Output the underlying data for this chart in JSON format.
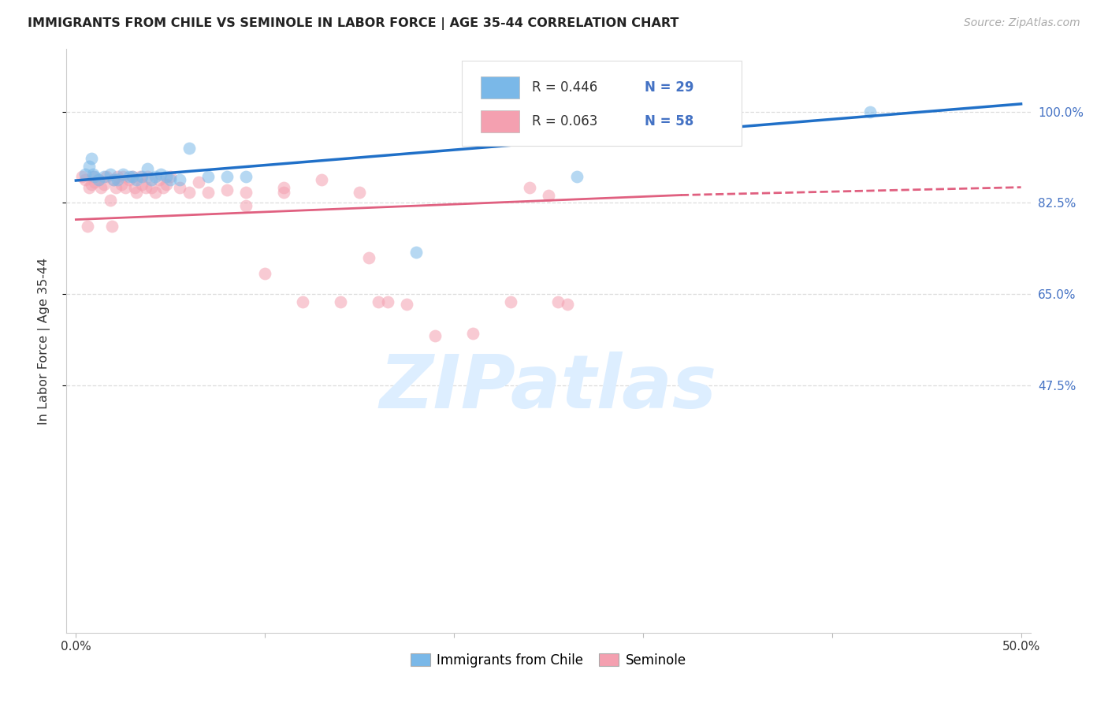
{
  "title": "IMMIGRANTS FROM CHILE VS SEMINOLE IN LABOR FORCE | AGE 35-44 CORRELATION CHART",
  "source": "Source: ZipAtlas.com",
  "ylabel": "In Labor Force | Age 35-44",
  "xtick_positions": [
    0.0,
    0.1,
    0.2,
    0.3,
    0.4,
    0.5
  ],
  "xtick_labels": [
    "0.0%",
    "",
    "",
    "",
    "",
    "50.0%"
  ],
  "ytick_labels_right": [
    "47.5%",
    "65.0%",
    "82.5%",
    "100.0%"
  ],
  "ytick_positions": [
    0.475,
    0.65,
    0.825,
    1.0
  ],
  "xlim": [
    -0.005,
    0.505
  ],
  "ylim": [
    0.0,
    1.12
  ],
  "blue_color": "#7ab8e8",
  "pink_color": "#f4a0b0",
  "blue_line_color": "#2070c8",
  "pink_line_color": "#e06080",
  "legend_entries": [
    {
      "label": "Immigrants from Chile",
      "R": 0.446,
      "N": 29,
      "color": "#7ab8e8"
    },
    {
      "label": "Seminole",
      "R": 0.063,
      "N": 58,
      "color": "#f4a0b0"
    }
  ],
  "blue_scatter_x": [
    0.005,
    0.007,
    0.008,
    0.009,
    0.01,
    0.012,
    0.015,
    0.018,
    0.02,
    0.022,
    0.025,
    0.028,
    0.03,
    0.032,
    0.035,
    0.038,
    0.04,
    0.042,
    0.045,
    0.048,
    0.05,
    0.055,
    0.06,
    0.07,
    0.08,
    0.09,
    0.18,
    0.265,
    0.42
  ],
  "blue_scatter_y": [
    0.88,
    0.895,
    0.91,
    0.88,
    0.875,
    0.87,
    0.875,
    0.88,
    0.87,
    0.87,
    0.88,
    0.875,
    0.875,
    0.87,
    0.875,
    0.89,
    0.87,
    0.875,
    0.88,
    0.875,
    0.87,
    0.87,
    0.93,
    0.875,
    0.875,
    0.875,
    0.73,
    0.875,
    1.0
  ],
  "pink_scatter_x": [
    0.003,
    0.005,
    0.006,
    0.007,
    0.008,
    0.009,
    0.01,
    0.012,
    0.013,
    0.015,
    0.016,
    0.018,
    0.019,
    0.02,
    0.021,
    0.022,
    0.024,
    0.025,
    0.026,
    0.028,
    0.03,
    0.031,
    0.032,
    0.034,
    0.035,
    0.037,
    0.038,
    0.04,
    0.042,
    0.044,
    0.046,
    0.048,
    0.05,
    0.055,
    0.06,
    0.065,
    0.07,
    0.08,
    0.09,
    0.1,
    0.11,
    0.12,
    0.13,
    0.14,
    0.155,
    0.165,
    0.175,
    0.19,
    0.21,
    0.23,
    0.24,
    0.25,
    0.255,
    0.26,
    0.15,
    0.09,
    0.11,
    0.16
  ],
  "pink_scatter_y": [
    0.875,
    0.87,
    0.78,
    0.855,
    0.86,
    0.875,
    0.865,
    0.87,
    0.855,
    0.86,
    0.875,
    0.83,
    0.78,
    0.87,
    0.855,
    0.875,
    0.86,
    0.875,
    0.855,
    0.87,
    0.875,
    0.855,
    0.845,
    0.875,
    0.86,
    0.855,
    0.875,
    0.855,
    0.845,
    0.87,
    0.855,
    0.86,
    0.875,
    0.855,
    0.845,
    0.865,
    0.845,
    0.85,
    0.845,
    0.69,
    0.845,
    0.635,
    0.87,
    0.635,
    0.72,
    0.635,
    0.63,
    0.57,
    0.575,
    0.635,
    0.855,
    0.84,
    0.635,
    0.63,
    0.845,
    0.82,
    0.855,
    0.635
  ],
  "blue_line": [
    0.0,
    0.868,
    0.5,
    1.015
  ],
  "pink_line_solid": [
    0.0,
    0.793,
    0.32,
    0.84
  ],
  "pink_line_dashed": [
    0.32,
    0.84,
    0.5,
    0.855
  ],
  "grid_color": "#dddddd",
  "background_color": "#ffffff",
  "title_color": "#222222",
  "watermark_text": "ZIPatlas",
  "watermark_color": "#ddeeff",
  "source_color": "#aaaaaa"
}
